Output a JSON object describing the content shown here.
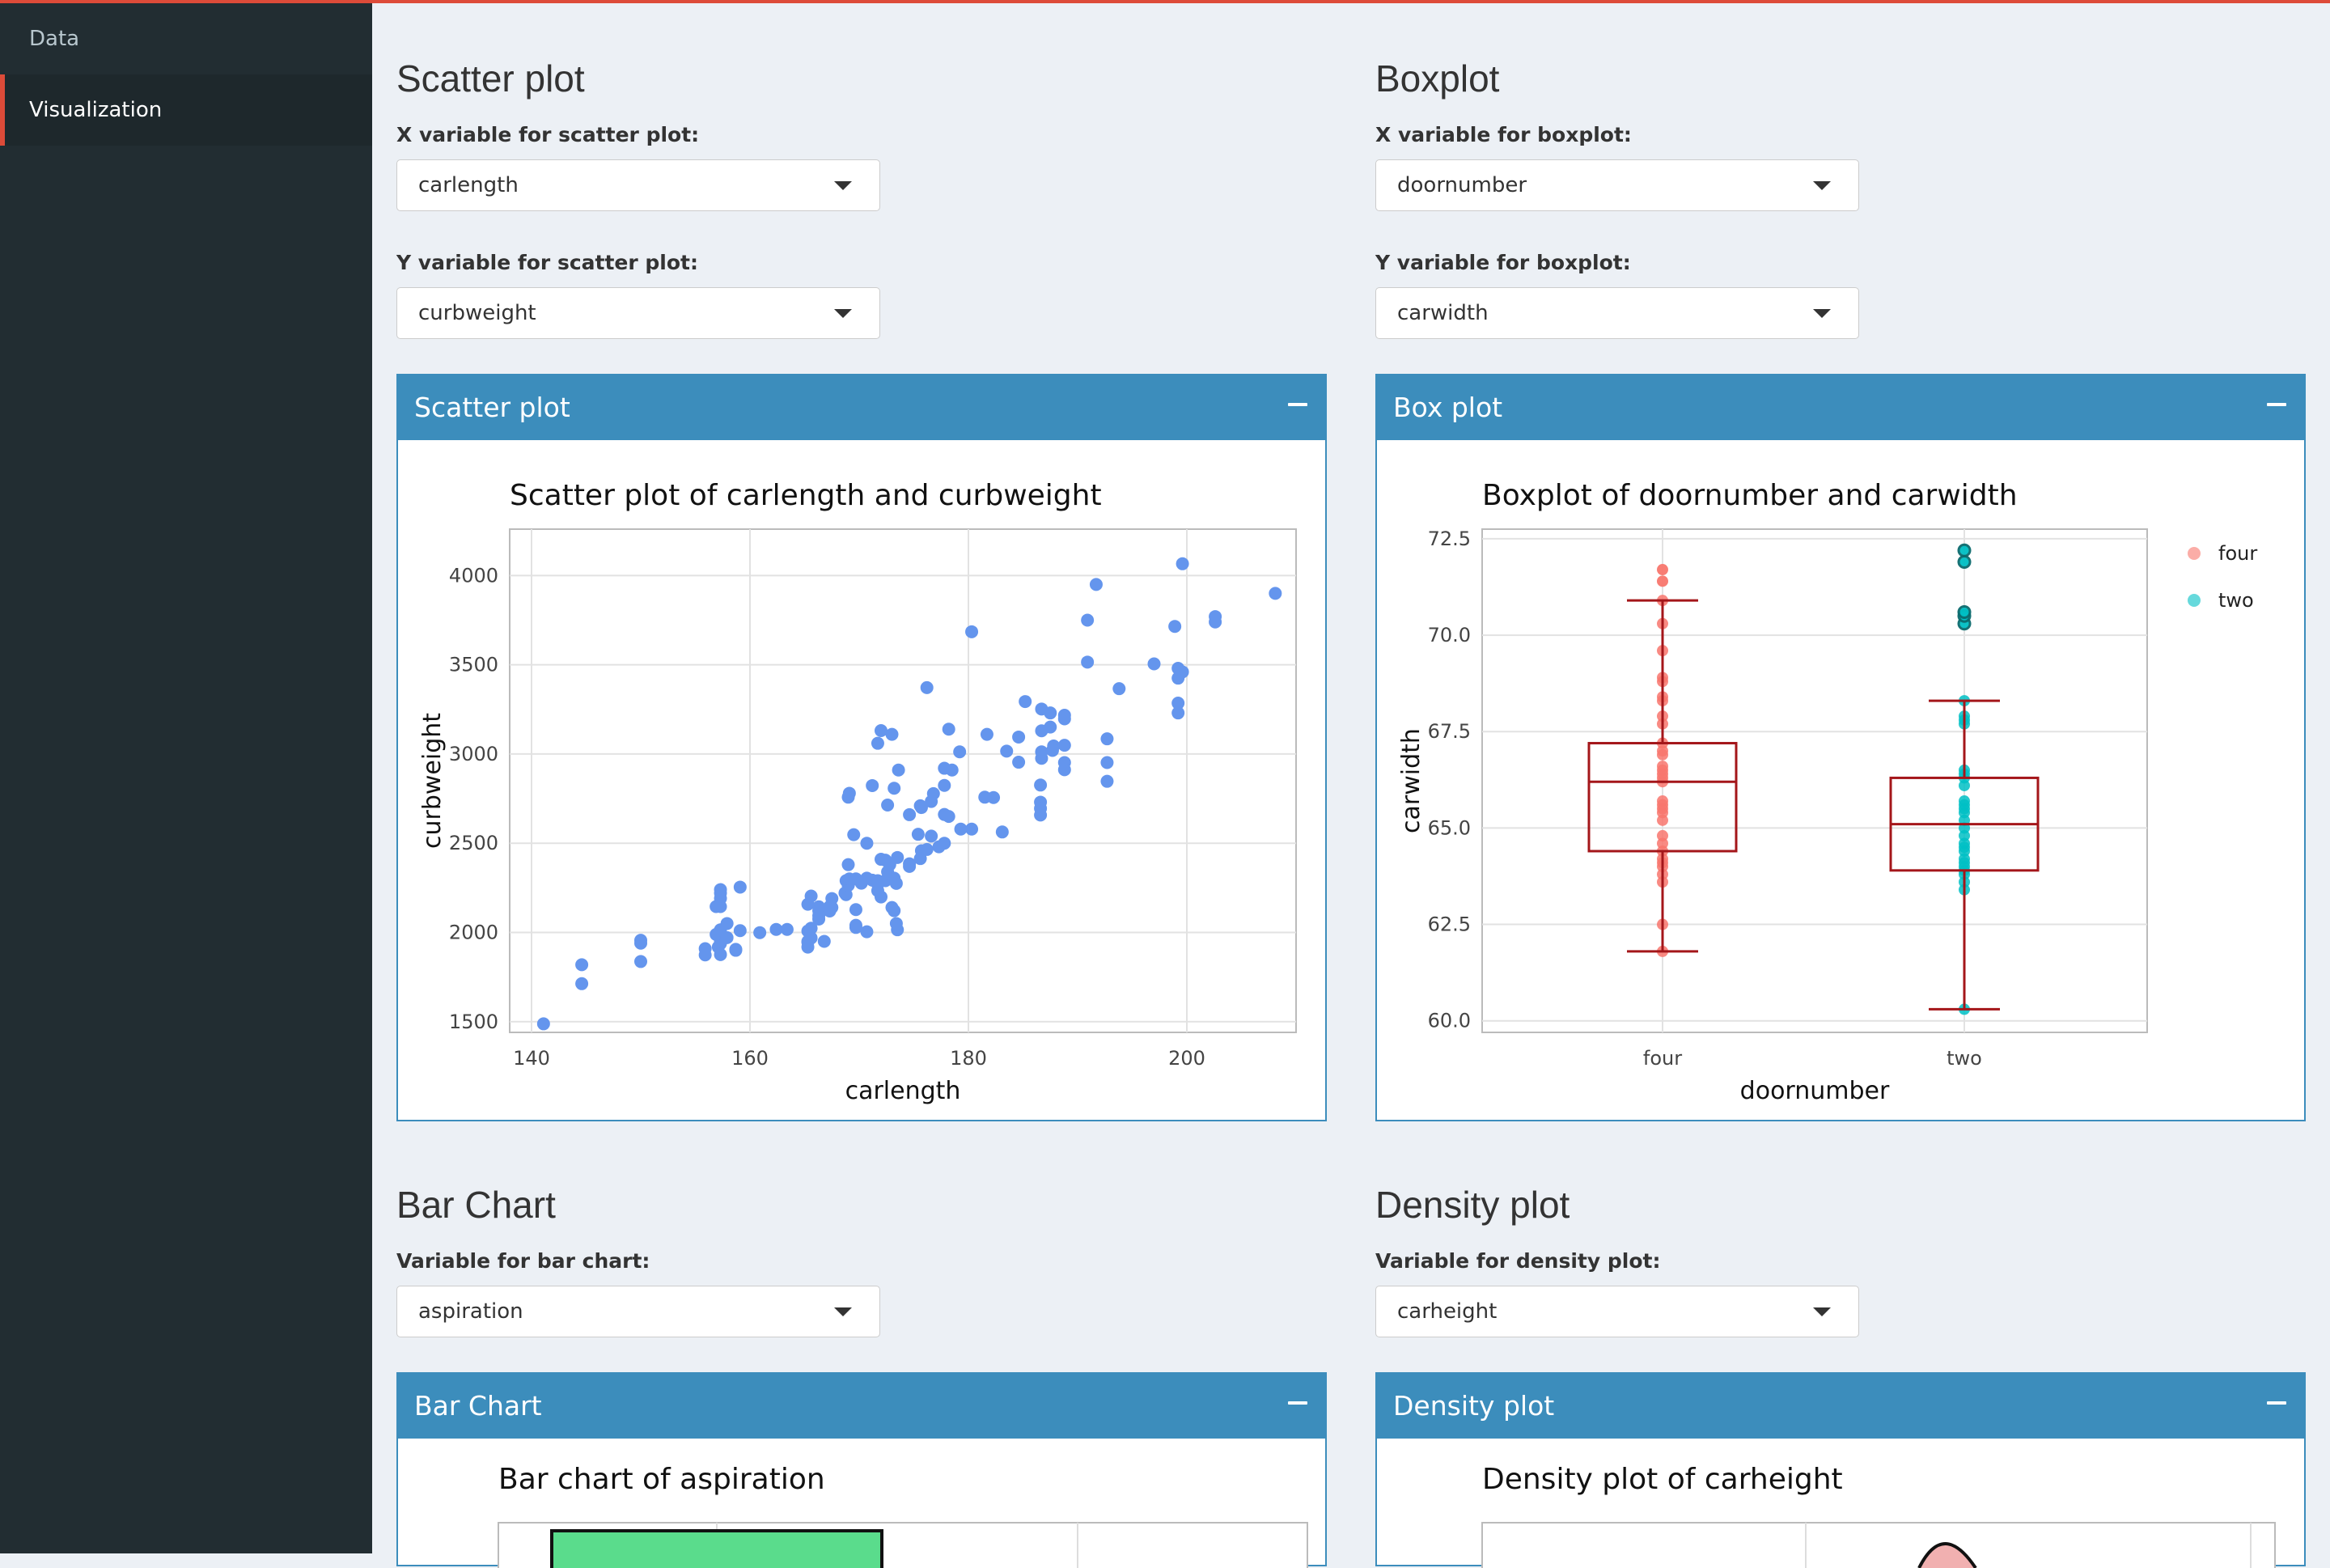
{
  "sidebar": {
    "items": [
      {
        "label": "Data"
      },
      {
        "label": "Visualization"
      }
    ]
  },
  "scatter_section": {
    "title": "Scatter plot",
    "x_label": "X variable for scatter plot:",
    "x_value": "carlength",
    "y_label": "Y variable for scatter plot:",
    "y_value": "curbweight",
    "box_title": "Scatter plot"
  },
  "box_section": {
    "title": "Boxplot",
    "x_label": "X variable for boxplot:",
    "x_value": "doornumber",
    "y_label": "Y variable for boxplot:",
    "y_value": "carwidth",
    "box_title": "Box plot"
  },
  "bar_section": {
    "title": "Bar Chart",
    "var_label": "Variable for bar chart:",
    "var_value": "aspiration",
    "box_title": "Bar Chart"
  },
  "density_section": {
    "title": "Density plot",
    "var_label": "Variable for density plot:",
    "var_value": "carheight",
    "box_title": "Density plot"
  },
  "chart_data": [
    {
      "type": "scatter",
      "title": "Scatter plot of carlength and curbweight",
      "xlabel": "carlength",
      "ylabel": "curbweight",
      "xlim": [
        138,
        210
      ],
      "ylim": [
        1440,
        4260
      ],
      "xticks": [
        140,
        160,
        180,
        200
      ],
      "yticks": [
        1500,
        2000,
        2500,
        3000,
        3500,
        4000
      ],
      "grid": true,
      "color": "#6495ed",
      "points": [
        [
          141.1,
          1488
        ],
        [
          144.6,
          1713
        ],
        [
          144.6,
          1819
        ],
        [
          150,
          1837
        ],
        [
          150,
          1940
        ],
        [
          150,
          1956
        ],
        [
          155.9,
          1874
        ],
        [
          155.9,
          1909
        ],
        [
          157.1,
          1918
        ],
        [
          157.3,
          1938
        ],
        [
          157.3,
          1951
        ],
        [
          156.9,
          1989
        ],
        [
          157.3,
          2015
        ],
        [
          157.9,
          1971
        ],
        [
          157.3,
          1876
        ],
        [
          158.7,
          1900
        ],
        [
          158.7,
          1905
        ],
        [
          157.3,
          2145
        ],
        [
          157.3,
          2221
        ],
        [
          157.3,
          2240
        ],
        [
          157.9,
          2050
        ],
        [
          159.1,
          2010
        ],
        [
          159.1,
          2254
        ],
        [
          160.9,
          1999
        ],
        [
          162.4,
          2017
        ],
        [
          163.4,
          2017
        ],
        [
          165.3,
          1918
        ],
        [
          165.3,
          1945
        ],
        [
          165.3,
          1950
        ],
        [
          165.3,
          2008
        ],
        [
          165.6,
          2024
        ],
        [
          165.6,
          1969
        ],
        [
          165.6,
          2204
        ],
        [
          166.3,
          2075
        ],
        [
          166.3,
          2094
        ],
        [
          166.3,
          2122
        ],
        [
          166.8,
          1950
        ],
        [
          167.3,
          2120
        ],
        [
          167.3,
          2140
        ],
        [
          167.5,
          2140
        ],
        [
          167.5,
          2190
        ],
        [
          168.7,
          2221
        ],
        [
          168.8,
          2212
        ],
        [
          168.8,
          2290
        ],
        [
          169,
          2265
        ],
        [
          169,
          2264
        ],
        [
          169.1,
          2300
        ],
        [
          169.7,
          2028
        ],
        [
          169.7,
          2128
        ],
        [
          169,
          2380
        ],
        [
          169.7,
          2300
        ],
        [
          170.2,
          2276
        ],
        [
          170.7,
          2304
        ],
        [
          171.2,
          2293
        ],
        [
          171.7,
          2270
        ],
        [
          172,
          2410
        ],
        [
          172.4,
          2405
        ],
        [
          172.4,
          2290
        ],
        [
          172.6,
          2340
        ],
        [
          172.8,
          2380
        ],
        [
          173.2,
          2304
        ],
        [
          173.4,
          2275
        ],
        [
          173.5,
          2420
        ],
        [
          174.6,
          2385
        ],
        [
          174.6,
          2370
        ],
        [
          175.4,
          2550
        ],
        [
          175.6,
          2414
        ],
        [
          175.7,
          2458
        ],
        [
          176.2,
          2465
        ],
        [
          176.6,
          2540
        ],
        [
          177.3,
          2480
        ],
        [
          177.8,
          2500
        ],
        [
          173,
          2140
        ],
        [
          173.2,
          2122
        ],
        [
          172,
          2199
        ],
        [
          169.5,
          2548
        ],
        [
          170.7,
          2500
        ],
        [
          171.2,
          2823
        ],
        [
          169.1,
          2780
        ],
        [
          169,
          2758
        ],
        [
          172.6,
          2714
        ],
        [
          173.2,
          2808
        ],
        [
          173.6,
          2910
        ],
        [
          174.6,
          2660
        ],
        [
          175.7,
          2700
        ],
        [
          175.6,
          2710
        ],
        [
          177.8,
          2661
        ],
        [
          176.8,
          2778
        ],
        [
          176.6,
          2734
        ],
        [
          178.5,
          2910
        ],
        [
          179.2,
          3012
        ],
        [
          181.5,
          2758
        ],
        [
          182.3,
          2756
        ],
        [
          183.1,
          2563
        ],
        [
          184.6,
          3095
        ],
        [
          186.6,
          2826
        ],
        [
          188.8,
          2952
        ],
        [
          188.8,
          3049
        ],
        [
          186.7,
          3012
        ],
        [
          187.5,
          3151
        ],
        [
          188.8,
          3197
        ],
        [
          186.7,
          3252
        ],
        [
          181.7,
          3110
        ],
        [
          172,
          3131
        ],
        [
          171.7,
          3060
        ],
        [
          173,
          3110
        ],
        [
          176.2,
          3372
        ],
        [
          180.3,
          3685
        ],
        [
          190.9,
          3515
        ],
        [
          191.7,
          3950
        ],
        [
          190.9,
          3750
        ],
        [
          193.8,
          3366
        ],
        [
          197,
          3505
        ],
        [
          199.2,
          3480
        ],
        [
          199.6,
          4066
        ],
        [
          202.6,
          3740
        ],
        [
          202.6,
          3770
        ],
        [
          208.1,
          3900
        ],
        [
          199.2,
          3230
        ],
        [
          199.2,
          3285
        ],
        [
          199.6,
          3460
        ],
        [
          199.2,
          3425
        ],
        [
          198.9,
          3715
        ],
        [
          192.7,
          3085
        ],
        [
          192.7,
          2952
        ],
        [
          192.7,
          2847
        ],
        [
          188.8,
          2912
        ],
        [
          186.7,
          2976
        ],
        [
          186.6,
          2730
        ],
        [
          186.6,
          2695
        ],
        [
          186.6,
          2658
        ],
        [
          184.6,
          2954
        ],
        [
          183.5,
          3016
        ],
        [
          186.7,
          3130
        ],
        [
          187.8,
          3045
        ],
        [
          187.7,
          3020
        ],
        [
          187.5,
          3230
        ],
        [
          185.2,
          3294
        ],
        [
          188.8,
          3217
        ],
        [
          178.2,
          3139
        ],
        [
          177.8,
          2920
        ],
        [
          177.8,
          2824
        ],
        [
          180.3,
          2579
        ],
        [
          179.3,
          2579
        ],
        [
          178.2,
          2650
        ],
        [
          173.5,
          2015
        ],
        [
          173.4,
          2050
        ],
        [
          171.7,
          2234
        ],
        [
          171.7,
          2290
        ],
        [
          170.7,
          2004
        ],
        [
          169.7,
          2040
        ],
        [
          167.3,
          2145
        ],
        [
          166.3,
          2144
        ],
        [
          165.3,
          2158
        ],
        [
          157.3,
          2191
        ],
        [
          156.9,
          2145
        ]
      ]
    },
    {
      "type": "box",
      "title": "Boxplot of doornumber and carwidth",
      "xlabel": "doornumber",
      "ylabel": "carwidth",
      "categories": [
        "four",
        "two"
      ],
      "ylim": [
        59.7,
        72.75
      ],
      "yticks": [
        60.0,
        62.5,
        65.0,
        67.5,
        70.0,
        72.5
      ],
      "yticklabels": [
        "60.0",
        "62.5",
        "65.0",
        "67.5",
        "70.0",
        "72.5"
      ],
      "legend": [
        "four",
        "two"
      ],
      "legend_position": "right",
      "grid": true,
      "boxes": [
        {
          "name": "four",
          "color": "#f8766d",
          "min": 61.8,
          "q1": 64.4,
          "median": 66.2,
          "q3": 67.2,
          "max": 70.9,
          "points": [
            61.8,
            62.5,
            63.6,
            63.8,
            64.0,
            64.1,
            64.2,
            64.4,
            64.6,
            64.8,
            65.2,
            65.4,
            65.5,
            65.6,
            65.7,
            66.2,
            66.3,
            66.4,
            66.5,
            66.6,
            66.9,
            67.0,
            67.2,
            67.7,
            67.9,
            68.3,
            68.4,
            68.8,
            68.9,
            69.6,
            70.3,
            70.9,
            71.4,
            71.7
          ]
        },
        {
          "name": "two",
          "color": "#00bfc4",
          "min": 60.3,
          "q1": 63.9,
          "median": 65.1,
          "q3": 66.3,
          "max": 68.3,
          "points": [
            60.3,
            63.4,
            63.6,
            63.8,
            63.9,
            64.0,
            64.1,
            64.2,
            64.4,
            64.5,
            64.6,
            64.8,
            65.0,
            65.2,
            65.4,
            65.5,
            65.6,
            65.7,
            66.1,
            66.3,
            66.4,
            66.5,
            67.7,
            67.8,
            67.9,
            68.3,
            70.3,
            70.5,
            70.6,
            71.9,
            72.2
          ]
        }
      ]
    },
    {
      "type": "bar",
      "title": "Bar chart of aspiration"
    },
    {
      "type": "area",
      "title": "Density plot of carheight"
    }
  ]
}
